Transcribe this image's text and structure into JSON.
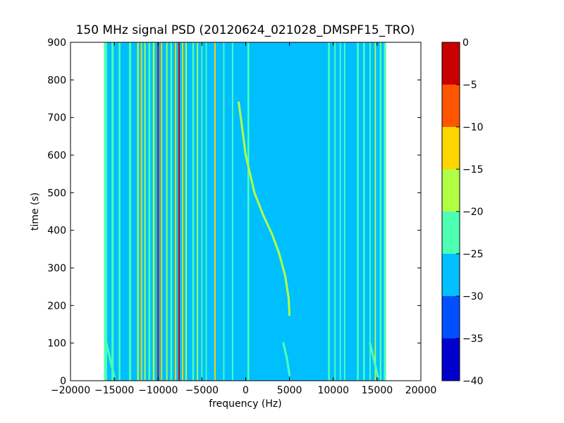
{
  "chart_data": {
    "type": "heatmap",
    "title": "150 MHz signal PSD (20120624_021028_DMSPF15_TRO)",
    "xlabel": "frequency (Hz)",
    "ylabel": "time (s)",
    "xlim": [
      -20000,
      20000
    ],
    "ylim": [
      0,
      900
    ],
    "x_ticks": [
      -20000,
      -15000,
      -10000,
      -5000,
      0,
      5000,
      10000,
      15000,
      20000
    ],
    "y_ticks": [
      0,
      100,
      200,
      300,
      400,
      500,
      600,
      700,
      800,
      900
    ],
    "data_extent": {
      "x": [
        -16000,
        16000
      ],
      "y": [
        0,
        900
      ]
    },
    "colorbar": {
      "min": -40,
      "max": 0,
      "ticks": [
        0,
        -5,
        -10,
        -15,
        -20,
        -25,
        -30,
        -35,
        -40
      ],
      "levels": [
        {
          "range": [
            -40,
            -35
          ],
          "color": "#0000cd"
        },
        {
          "range": [
            -35,
            -30
          ],
          "color": "#0050ff"
        },
        {
          "range": [
            -30,
            -25
          ],
          "color": "#00bfff"
        },
        {
          "range": [
            -25,
            -20
          ],
          "color": "#4dffb3"
        },
        {
          "range": [
            -20,
            -15
          ],
          "color": "#b0ff45"
        },
        {
          "range": [
            -15,
            -10
          ],
          "color": "#ffd500"
        },
        {
          "range": [
            -10,
            -5
          ],
          "color": "#ff5500"
        },
        {
          "range": [
            -5,
            0
          ],
          "color": "#c80000"
        }
      ]
    },
    "background_level": -27.5,
    "vertical_lines": [
      {
        "x": -16000,
        "level": -22.5,
        "width": 350
      },
      {
        "x": -15200,
        "level": -22.5,
        "width": 250
      },
      {
        "x": -14400,
        "level": -22.5,
        "width": 200
      },
      {
        "x": -13200,
        "level": -22.5,
        "width": 250
      },
      {
        "x": -12300,
        "level": -17.5,
        "width": 180
      },
      {
        "x": -11900,
        "level": -12.5,
        "width": 150
      },
      {
        "x": -11500,
        "level": -17.5,
        "width": 150
      },
      {
        "x": -11000,
        "level": -22.5,
        "width": 200
      },
      {
        "x": -10500,
        "level": -17.5,
        "width": 200
      },
      {
        "x": -10000,
        "level": -2.5,
        "width": 150
      },
      {
        "x": -9600,
        "level": -12.5,
        "width": 150
      },
      {
        "x": -9000,
        "level": -17.5,
        "width": 150
      },
      {
        "x": -8500,
        "level": -22.5,
        "width": 200
      },
      {
        "x": -8000,
        "level": -12.5,
        "width": 150
      },
      {
        "x": -7600,
        "level": -2.5,
        "width": 150
      },
      {
        "x": -7200,
        "level": -12.5,
        "width": 150
      },
      {
        "x": -6800,
        "level": -17.5,
        "width": 150
      },
      {
        "x": -6000,
        "level": -22.5,
        "width": 200
      },
      {
        "x": -5500,
        "level": -17.5,
        "width": 150
      },
      {
        "x": -5000,
        "level": -22.5,
        "width": 150
      },
      {
        "x": -4500,
        "level": -22.5,
        "width": 150
      },
      {
        "x": -3500,
        "level": -12.5,
        "width": 150
      },
      {
        "x": -2500,
        "level": -22.5,
        "width": 150
      },
      {
        "x": -1500,
        "level": -22.5,
        "width": 150
      },
      {
        "x": 300,
        "level": -22.5,
        "width": 200
      },
      {
        "x": 9500,
        "level": -22.5,
        "width": 200
      },
      {
        "x": 10200,
        "level": -22.5,
        "width": 150
      },
      {
        "x": 10800,
        "level": -22.5,
        "width": 150
      },
      {
        "x": 11300,
        "level": -22.5,
        "width": 150
      },
      {
        "x": 12800,
        "level": -22.5,
        "width": 200
      },
      {
        "x": 13500,
        "level": -22.5,
        "width": 200
      },
      {
        "x": 14200,
        "level": -22.5,
        "width": 150
      },
      {
        "x": 14800,
        "level": -17.5,
        "width": 150
      },
      {
        "x": 15400,
        "level": -22.5,
        "width": 200
      },
      {
        "x": 15900,
        "level": -22.5,
        "width": 250
      }
    ],
    "curves": [
      {
        "level": -17.5,
        "points": [
          [
            -800,
            740
          ],
          [
            -500,
            690
          ],
          [
            0,
            600
          ],
          [
            1000,
            500
          ],
          [
            2000,
            440
          ],
          [
            3000,
            390
          ],
          [
            3800,
            340
          ],
          [
            4500,
            280
          ],
          [
            4900,
            220
          ],
          [
            5000,
            175
          ]
        ]
      },
      {
        "level": -22.5,
        "points": [
          [
            4300,
            100
          ],
          [
            4700,
            60
          ],
          [
            5000,
            15
          ]
        ]
      },
      {
        "level": -22.5,
        "points": [
          [
            14200,
            100
          ],
          [
            14600,
            60
          ],
          [
            15100,
            10
          ]
        ]
      },
      {
        "level": -22.5,
        "points": [
          [
            -16000,
            110
          ],
          [
            -15500,
            60
          ],
          [
            -15000,
            10
          ]
        ]
      }
    ]
  }
}
